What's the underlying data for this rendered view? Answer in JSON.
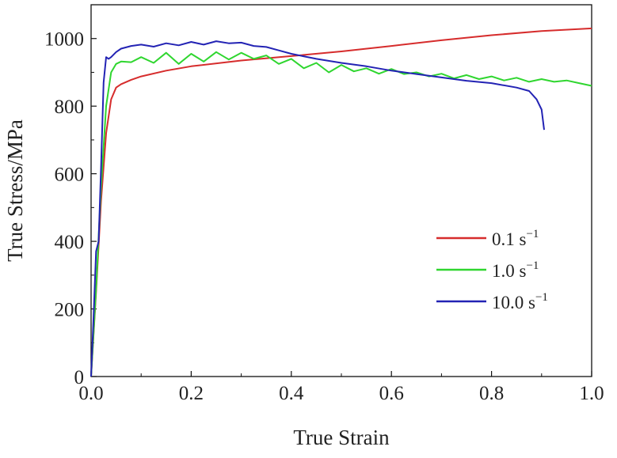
{
  "chart_data": {
    "type": "line",
    "title": "",
    "xlabel": "True Strain",
    "ylabel": "True Stress/MPa",
    "xlim": [
      0,
      1.0
    ],
    "ylim": [
      0,
      1100
    ],
    "xticks": [
      0.0,
      0.2,
      0.4,
      0.6,
      0.8,
      1.0
    ],
    "xtick_labels": [
      "0.0",
      "0.2",
      "0.4",
      "0.6",
      "0.8",
      "1.0"
    ],
    "yticks": [
      0,
      200,
      400,
      600,
      800,
      1000
    ],
    "ytick_labels": [
      "0",
      "200",
      "400",
      "600",
      "800",
      "1000"
    ],
    "grid": false,
    "legend_position": "right",
    "series": [
      {
        "name": "0.1 s",
        "sup": "−1",
        "color": "#d62c2c",
        "x": [
          0.0,
          0.01,
          0.02,
          0.03,
          0.04,
          0.05,
          0.06,
          0.08,
          0.1,
          0.15,
          0.2,
          0.3,
          0.4,
          0.5,
          0.6,
          0.7,
          0.8,
          0.9,
          1.0
        ],
        "y": [
          0,
          250,
          520,
          720,
          820,
          855,
          865,
          878,
          888,
          905,
          918,
          935,
          948,
          962,
          978,
          995,
          1010,
          1022,
          1030
        ]
      },
      {
        "name": "1.0 s",
        "sup": "−1",
        "color": "#2fd62f",
        "x": [
          0.0,
          0.01,
          0.02,
          0.03,
          0.04,
          0.05,
          0.06,
          0.08,
          0.1,
          0.125,
          0.15,
          0.175,
          0.2,
          0.225,
          0.25,
          0.275,
          0.3,
          0.325,
          0.35,
          0.375,
          0.4,
          0.425,
          0.45,
          0.475,
          0.5,
          0.525,
          0.55,
          0.575,
          0.6,
          0.625,
          0.65,
          0.675,
          0.7,
          0.725,
          0.75,
          0.775,
          0.8,
          0.825,
          0.85,
          0.875,
          0.9,
          0.925,
          0.95,
          0.975,
          1.0
        ],
        "y": [
          0,
          260,
          560,
          800,
          900,
          925,
          932,
          930,
          945,
          928,
          958,
          925,
          955,
          932,
          960,
          938,
          958,
          940,
          950,
          925,
          940,
          912,
          928,
          900,
          922,
          903,
          912,
          896,
          910,
          895,
          900,
          888,
          896,
          882,
          892,
          880,
          888,
          876,
          884,
          872,
          880,
          872,
          876,
          868,
          860
        ]
      },
      {
        "name": "10.0 s",
        "sup": "−1",
        "color": "#2323b4",
        "x": [
          0.0,
          0.005,
          0.01,
          0.015,
          0.02,
          0.025,
          0.03,
          0.035,
          0.04,
          0.05,
          0.06,
          0.08,
          0.1,
          0.125,
          0.15,
          0.175,
          0.2,
          0.225,
          0.25,
          0.275,
          0.3,
          0.325,
          0.35,
          0.375,
          0.4,
          0.45,
          0.5,
          0.55,
          0.6,
          0.65,
          0.7,
          0.75,
          0.8,
          0.85,
          0.875,
          0.89,
          0.9,
          0.905
        ],
        "y": [
          0,
          180,
          370,
          400,
          620,
          870,
          945,
          940,
          945,
          960,
          970,
          978,
          982,
          976,
          986,
          980,
          990,
          982,
          992,
          986,
          988,
          978,
          975,
          965,
          955,
          940,
          928,
          918,
          905,
          895,
          885,
          875,
          868,
          855,
          845,
          820,
          790,
          730
        ]
      }
    ]
  }
}
